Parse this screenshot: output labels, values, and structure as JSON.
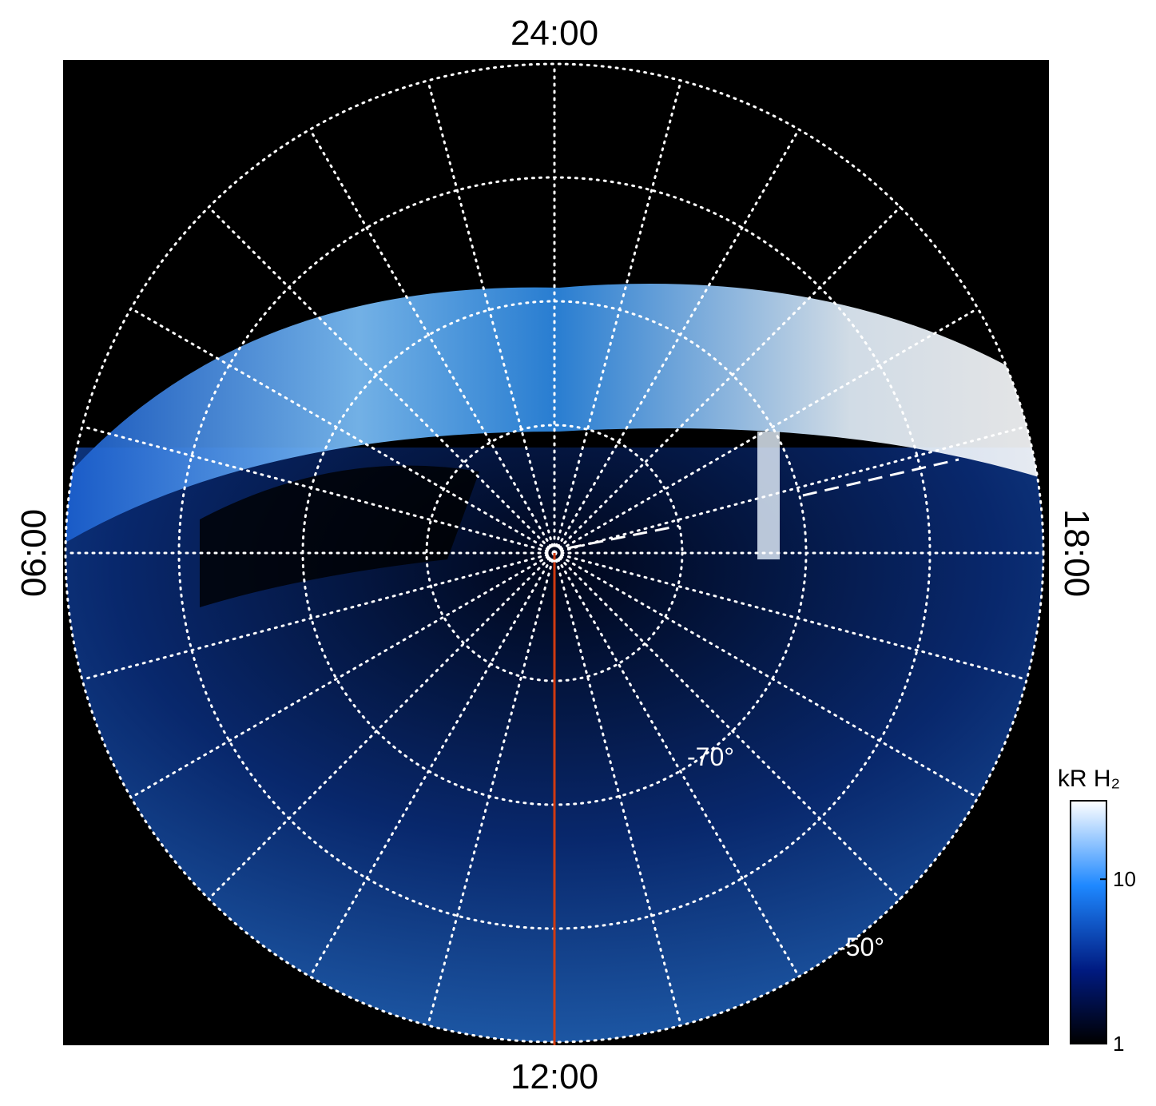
{
  "time_labels": {
    "top": "24:00",
    "bottom": "12:00",
    "left": "06:00",
    "right": "18:00"
  },
  "latitude_labels": [
    "-70°",
    "-50°"
  ],
  "colorbar": {
    "label": "kR H₂",
    "log": true,
    "lim": [
      1,
      30
    ],
    "ticks": [
      1,
      10
    ]
  }
}
